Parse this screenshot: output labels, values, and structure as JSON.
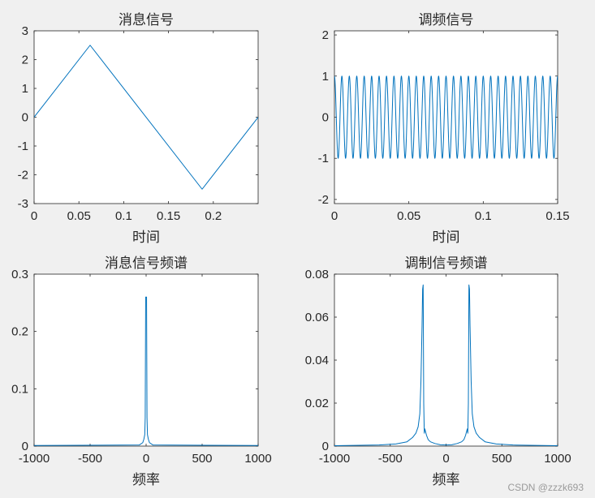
{
  "watermark": "CSDN @zzzk693",
  "chart_data": [
    {
      "type": "line",
      "title": "消息信号",
      "xlabel": "时间",
      "ylabel": "",
      "xlim": [
        0,
        0.25
      ],
      "ylim": [
        -3,
        3
      ],
      "xticks": [
        0,
        0.05,
        0.1,
        0.15,
        0.2
      ],
      "xtick_labels": [
        "0",
        "0.05",
        "0.1",
        "0.15",
        "0.2"
      ],
      "yticks": [
        -3,
        -2,
        -1,
        0,
        1,
        2,
        3
      ],
      "ytick_labels": [
        "-3",
        "-2",
        "-1",
        "0",
        "1",
        "2",
        "3"
      ],
      "color": "#0072bd",
      "series": [
        {
          "x": [
            0,
            0.0625,
            0.1875,
            0.25
          ],
          "y": [
            0,
            2.5,
            -2.5,
            0
          ]
        }
      ]
    },
    {
      "type": "line",
      "title": "调频信号",
      "xlabel": "时间",
      "ylabel": "",
      "xlim": [
        0,
        0.15
      ],
      "ylim": [
        -2.1,
        2.1
      ],
      "xticks": [
        0,
        0.05,
        0.1,
        0.15
      ],
      "xtick_labels": [
        "0",
        "0.05",
        "0.1",
        "0.15"
      ],
      "yticks": [
        -2,
        -1,
        0,
        1,
        2
      ],
      "ytick_labels": [
        "-2",
        "-1",
        "0",
        "1",
        "2"
      ],
      "color": "#0072bd",
      "series": [
        {
          "kind": "cosine",
          "amplitude": 1,
          "cycles": 30,
          "x_start": 0,
          "x_end": 0.15
        }
      ]
    },
    {
      "type": "line",
      "title": "消息信号频谱",
      "xlabel": "频率",
      "ylabel": "",
      "xlim": [
        -1000,
        1000
      ],
      "ylim": [
        0,
        0.3
      ],
      "xticks": [
        -1000,
        -500,
        0,
        500,
        1000
      ],
      "xtick_labels": [
        "-1000",
        "-500",
        "0",
        "500",
        "1000"
      ],
      "yticks": [
        0,
        0.1,
        0.2,
        0.3
      ],
      "ytick_labels": [
        "0",
        "0.1",
        "0.2",
        "0.3"
      ],
      "color": "#0072bd",
      "series": [
        {
          "x": [
            -1000,
            -60,
            -30,
            -20,
            -12,
            -8,
            -4,
            0,
            4,
            8,
            12,
            20,
            30,
            60,
            1000
          ],
          "y": [
            0.001,
            0.002,
            0.006,
            0.012,
            0.02,
            0.05,
            0.26,
            0.26,
            0.26,
            0.05,
            0.02,
            0.012,
            0.006,
            0.002,
            0.001
          ]
        }
      ]
    },
    {
      "type": "line",
      "title": "调制信号频谱",
      "xlabel": "频率",
      "ylabel": "",
      "xlim": [
        -1000,
        1000
      ],
      "ylim": [
        0,
        0.08
      ],
      "xticks": [
        -1000,
        -500,
        0,
        500,
        1000
      ],
      "xtick_labels": [
        "-1000",
        "-500",
        "0",
        "500",
        "1000"
      ],
      "yticks": [
        0,
        0.02,
        0.04,
        0.06,
        0.08
      ],
      "ytick_labels": [
        "0",
        "0.02",
        "0.04",
        "0.06",
        "0.08"
      ],
      "color": "#0072bd",
      "series": [
        {
          "x": [
            -1000,
            -600,
            -450,
            -350,
            -300,
            -270,
            -250,
            -235,
            -225,
            -215,
            -210,
            -205,
            -200,
            -195,
            -190,
            -185,
            -175,
            -160,
            -140,
            -100,
            -50,
            0,
            50,
            100,
            140,
            160,
            175,
            185,
            190,
            195,
            200,
            205,
            210,
            215,
            225,
            235,
            250,
            270,
            300,
            350,
            450,
            600,
            1000
          ],
          "y": [
            0.0002,
            0.0005,
            0.001,
            0.002,
            0.004,
            0.006,
            0.009,
            0.015,
            0.03,
            0.056,
            0.073,
            0.075,
            0.02,
            0.006,
            0.008,
            0.007,
            0.005,
            0.003,
            0.002,
            0.0012,
            0.0006,
            0.0005,
            0.0006,
            0.0012,
            0.002,
            0.003,
            0.005,
            0.007,
            0.008,
            0.006,
            0.02,
            0.075,
            0.073,
            0.056,
            0.03,
            0.015,
            0.009,
            0.006,
            0.004,
            0.002,
            0.001,
            0.0005,
            0.0002
          ]
        }
      ]
    }
  ]
}
